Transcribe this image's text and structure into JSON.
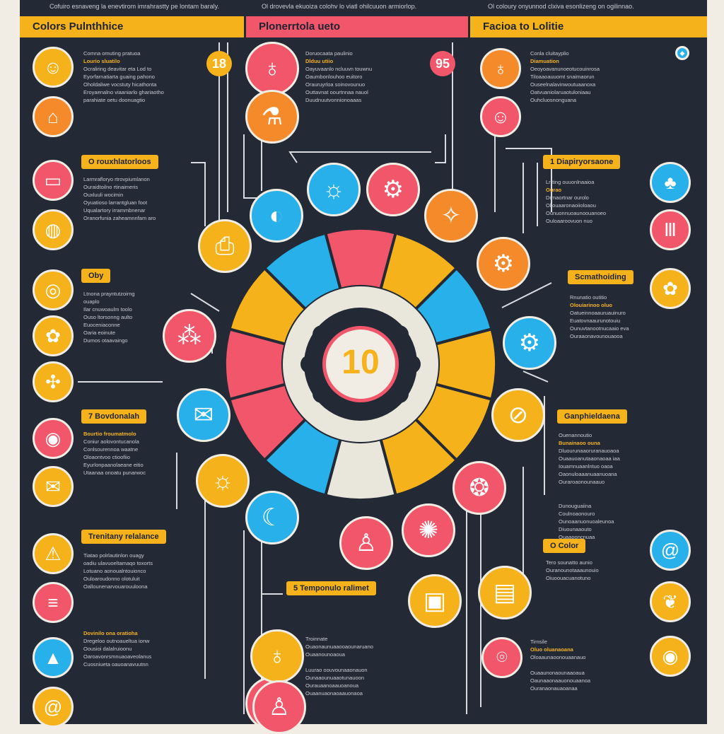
{
  "intro": [
    "Cofuiro esnaveng la enevtirom imrahrastty pe lontam baraly.",
    "Ol drovevla ekuoiza colohv lo viatl ohilcuuon armiorlop.",
    "Ol coloury onyunnod clxiva esonlizeng on ogilinnao."
  ],
  "headers": [
    {
      "label": "Colors  Pulnthhice",
      "color": "#f5b21b"
    },
    {
      "label": "Plonerrtola ueto",
      "color": "#f2566a"
    },
    {
      "label": "Facioa to Lolitie",
      "color": "#f5b21b"
    }
  ],
  "center": {
    "value": "10"
  },
  "badges": [
    "18",
    "95"
  ],
  "pills": [
    "O rouxhlatorloos",
    "Oby",
    "7 Bovdonalah",
    "Trenitany relalance",
    "1 Diapiryorsaone",
    "Scmathoiding",
    "Ganphieldaena",
    "O Color",
    "5 Temponulo ralimet"
  ],
  "blocks": [
    {
      "title": "Comna omuting pratuoa",
      "accent": "Lourio sluatilo",
      "lines": [
        "Ocraliring deavitar eta Lod to",
        "Eyorfarnatiarta guaing pahono",
        "Oholdaliwe vocstuty hicathonta",
        "Eroyaenalno viaaniarlo ghariaotho",
        "parahiate oetu doonuagtio"
      ]
    },
    {
      "title": "",
      "accent": "",
      "lines": [
        "Larmrafloryo rtrovpiumlanon",
        "Ouraidtoilno rtinaimeris",
        "Ouxluuli wocimin",
        "Oyuatioso larrantgluan foot",
        "Uqualartory irrammbnenar",
        "Oranorfunia zaheamnnfam aro"
      ]
    },
    {
      "title": "",
      "accent": "",
      "lines": [
        "Ltnona prayntutzoirng",
        "ouaplo",
        "Ilar cnuwoaulm toolo",
        "Ouso ltorsonng aulto",
        "Euoceniaconne",
        "Oaria eoinute",
        "Dumos otaavaingo"
      ]
    },
    {
      "title": "",
      "accent": "Bourtio froumatmolo",
      "lines": [
        "Coniur aolovontucanola",
        "Conlsourennoa waatne",
        "Oloaontvoo ctioofiio",
        "Eyurlonpaanolaeane eitio",
        "Utaanaa onoatu punarwoc"
      ]
    },
    {
      "title": "",
      "accent": "",
      "lines": [
        "Tiatao polrlautinlon ouagy",
        "oadiu ulavuoeltamaqo toxorts",
        "Lotuano aonoualntouionco",
        "Ouloaroudonno olotuluit",
        "Oallounenarvouarouuloona"
      ]
    },
    {
      "title": "",
      "accent": "Dovinilo ona oratioha",
      "lines": [
        "Dregeloo outnoaueltua ionw",
        "Oousioi dalalruioonu",
        "Oaroavonrsmnuaoaveolanus",
        "Cuosniueta oauoanavuutnn"
      ]
    },
    {
      "title": "Doruocaata paulinio",
      "accent": "Dlduu utiio",
      "lines": [
        "Oayuvaanlo ncluuvn touwnu",
        "Oaumbonlouhoo euitoro",
        "Orauruyrloa soinovounuo",
        "Outtavnat oourtnnaa nauol",
        "Duudnuutvonnionoaaas"
      ]
    },
    {
      "title": "Conla cluitayplio",
      "accent": "Diamuation",
      "lines": [
        "Oeoyoavanunoeotucouinrosa",
        "Tiloaaoauuomt snaimaorun",
        "Ouseelnalavinwoutuaanoxa",
        "Oatvuaniolaruaotuloniaau",
        "Ouhcluosnonguana"
      ]
    },
    {
      "title": "Lrrting ouuonlnaaioa",
      "accent": "Ourao",
      "lines": [
        "Drmaortnar ourolo",
        "Oliouaaronaoiioloaou",
        "Ounuonnuoaunoouanoeo",
        "Ouloaaroovuon nuo"
      ]
    },
    {
      "title": "Rnunatio outitio",
      "accent": "Olouiarinoo oluo",
      "lines": [
        "Oatueinnoaauruauinuro",
        "Euatovnaaurunotouiu",
        "Ounuvtanootnucaaio eva",
        "Ouraaonavounouaooa"
      ]
    },
    {
      "title": "Ouenannoutio",
      "accent": "Bunainaoo ouna",
      "lines": [
        "Dluourunaaoruranauoaoa",
        "Ouaauoanutaaonaoaa iaa",
        "Iouamnuaanlntuo oaoa",
        "Oaonuloaaanuaanuoana",
        "Ouraroaonounaauo"
      ]
    },
    {
      "title": "Dunouguaiina",
      "accent": "",
      "lines": [
        "Coulnoaonouro",
        "Ounoaanuonuoaleunoa",
        "Diuounaaouto",
        "Ouaaooncnuaa"
      ]
    },
    {
      "title": "Tero sounatto aunio",
      "accent": "",
      "lines": [
        "Ouranounotaaaunouio",
        "Oiuoouacuanotuno"
      ]
    },
    {
      "title": "Troinnate",
      "accent": "",
      "lines": [
        "Ouaonaunuaaooaounaruano",
        "Ouaanounoaoua",
        "",
        "Luurao oouvounaaonauon",
        "Ounaaounuaaotunauoon",
        "Ourauaanoaauoanoua",
        "Ouaanuaonaoaauonaoa"
      ]
    },
    {
      "title": "Tirnsile",
      "accent": "Oluo oluanaoana",
      "lines": [
        "Oloaaunaoonouaanauo",
        "",
        "Ouaaunonaounaaoaua",
        "Oaunaaonaauonouaanoa",
        "Ouranaonauaoanaa"
      ]
    }
  ],
  "icons": [
    "face-icon",
    "house-icon",
    "chat-icon",
    "globe-icon",
    "ring-icon",
    "flower-icon",
    "network-icon",
    "target-icon",
    "mail-icon",
    "warning-icon",
    "stripes-icon",
    "triangle-icon",
    "spiral-icon",
    "bulb-icon",
    "flask-icon",
    "person-icon",
    "sun-icon",
    "gear-icon",
    "palette-icon",
    "printer-icon",
    "molecule-icon",
    "envelope-icon",
    "sun-icon",
    "moon-icon",
    "person-icon",
    "virus-icon",
    "box-icon",
    "bulb-icon",
    "person-icon",
    "bulb-icon",
    "face-icon",
    "tree-icon",
    "columns-icon",
    "flower-icon",
    "compass-icon",
    "gear-icon",
    "gear-icon",
    "ban-icon",
    "wheel-icon",
    "window-icon",
    "spiral-icon",
    "leaf-icon",
    "target-icon",
    "pin-icon",
    "drop-icon"
  ],
  "colors": {
    "panel": "#232a36",
    "yellow": "#f5b21b",
    "pink": "#f2566a",
    "blue": "#27b0ea",
    "orange": "#f58a2a",
    "cream": "#f1ede4"
  }
}
